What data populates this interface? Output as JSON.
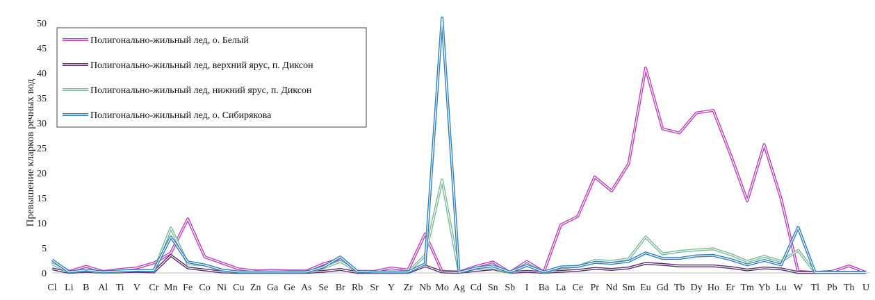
{
  "chart_data": {
    "type": "line",
    "title": "",
    "xlabel": "",
    "ylabel": "Превышение кларков речных вод",
    "ylim": [
      0,
      50
    ],
    "yticks": [
      0,
      5,
      10,
      15,
      20,
      25,
      30,
      35,
      40,
      45,
      50
    ],
    "grid": false,
    "legend_position": "top-left",
    "categories": [
      "Cl",
      "Li",
      "B",
      "Al",
      "Ti",
      "V",
      "Cr",
      "Mn",
      "Fe",
      "Co",
      "Ni",
      "Cu",
      "Zn",
      "Ga",
      "Ge",
      "As",
      "Se",
      "Br",
      "Rb",
      "Sr",
      "Y",
      "Zr",
      "Nb",
      "Mo",
      "Ag",
      "Cd",
      "Sn",
      "Sb",
      "I",
      "Ba",
      "La",
      "Ce",
      "Pr",
      "Nd",
      "Sm",
      "Eu",
      "Gd",
      "Tb",
      "Dy",
      "Ho",
      "Er",
      "Tm",
      "Yb",
      "Lu",
      "W",
      "Tl",
      "Pb",
      "Th",
      "U"
    ],
    "series": [
      {
        "name": "Полигонально-жильный лед, о. Белый",
        "color": "#c040c0",
        "values": [
          2.2,
          0.3,
          1.3,
          0.3,
          0.7,
          1.0,
          2.0,
          4.0,
          10.8,
          3.2,
          2.0,
          0.8,
          0.4,
          0.5,
          0.4,
          0.4,
          1.8,
          2.8,
          0.3,
          0.3,
          1.0,
          0.6,
          7.8,
          0.3,
          0.2,
          1.3,
          2.2,
          0.1,
          2.3,
          0.2,
          9.6,
          11.3,
          19.2,
          16.4,
          21.8,
          41.0,
          28.8,
          28.0,
          32.0,
          32.5,
          23.8,
          14.4,
          25.7,
          14.8,
          0.3,
          0.1,
          0.3,
          1.4,
          0.1
        ]
      },
      {
        "name": "Полигонально-жильный лед, верхний ярус, п. Диксон",
        "color": "#5a2d6e",
        "values": [
          0.8,
          0.1,
          0.3,
          0.1,
          0.2,
          0.3,
          0.2,
          3.5,
          1.0,
          0.6,
          0.2,
          0.1,
          0.1,
          0.1,
          0.1,
          0.1,
          0.3,
          0.7,
          0.1,
          0.1,
          0.1,
          0.1,
          1.4,
          0.2,
          0.1,
          0.5,
          0.8,
          0.1,
          0.3,
          0.1,
          0.3,
          0.5,
          0.9,
          0.7,
          1.0,
          1.9,
          1.7,
          1.4,
          1.4,
          1.4,
          1.1,
          0.6,
          1.0,
          0.8,
          0.1,
          0.1,
          0.1,
          0.1,
          0.1
        ]
      },
      {
        "name": "Полигонально-жильный лед, нижний ярус, п. Диксон",
        "color": "#7dba98",
        "values": [
          1.8,
          0.2,
          0.5,
          0.1,
          0.3,
          0.5,
          0.4,
          9.0,
          1.8,
          1.6,
          0.6,
          0.2,
          0.2,
          0.2,
          0.2,
          0.2,
          1.0,
          2.3,
          0.3,
          0.2,
          0.2,
          0.2,
          3.5,
          18.6,
          0.1,
          0.9,
          1.0,
          0.1,
          1.8,
          0.1,
          1.0,
          1.3,
          2.5,
          2.3,
          2.8,
          7.2,
          3.8,
          4.3,
          4.6,
          4.8,
          3.7,
          2.3,
          3.3,
          2.3,
          4.5,
          0.1,
          0.1,
          0.1,
          0.1
        ]
      },
      {
        "name": "Полигонально-жильный лед, о. Сибирякова",
        "color": "#2f7fc1",
        "values": [
          2.6,
          0.2,
          0.6,
          0.2,
          0.4,
          0.5,
          0.5,
          7.2,
          2.2,
          1.6,
          0.6,
          0.2,
          0.2,
          0.2,
          0.2,
          0.2,
          1.2,
          3.2,
          0.3,
          0.2,
          0.2,
          0.2,
          1.8,
          51.0,
          0.1,
          1.0,
          1.4,
          0.2,
          1.5,
          0.2,
          1.2,
          1.3,
          2.1,
          1.9,
          2.3,
          4.0,
          2.9,
          2.9,
          3.4,
          3.5,
          2.7,
          1.6,
          2.5,
          1.6,
          9.1,
          0.1,
          0.1,
          0.1,
          0.1
        ]
      }
    ]
  }
}
